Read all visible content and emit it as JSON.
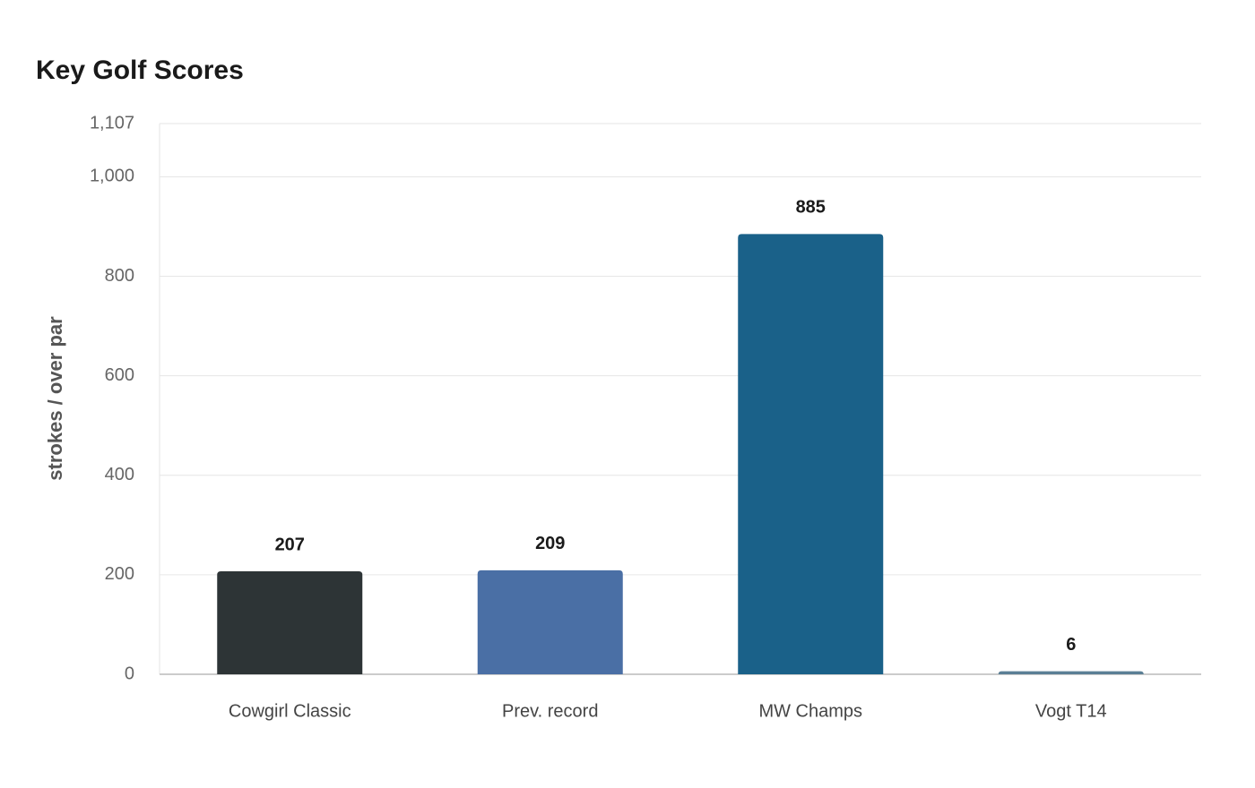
{
  "chart_data": {
    "type": "bar",
    "title": "Key Golf Scores",
    "y_label": "strokes / over par",
    "categories": [
      "Cowgirl Classic",
      "Prev. record",
      "MW Champs",
      "Vogt T14"
    ],
    "values": [
      207,
      209,
      885,
      6
    ],
    "colors": [
      "#2d3436",
      "#4a6fa5",
      "#1a6189",
      "#5b7f95"
    ],
    "ylim": [
      0,
      1107
    ],
    "yticks": [
      0,
      200,
      400,
      600,
      800,
      {
        "value": 1000,
        "label": "1,000"
      },
      {
        "value": 1107,
        "label": "1,107"
      }
    ],
    "grid": true
  }
}
